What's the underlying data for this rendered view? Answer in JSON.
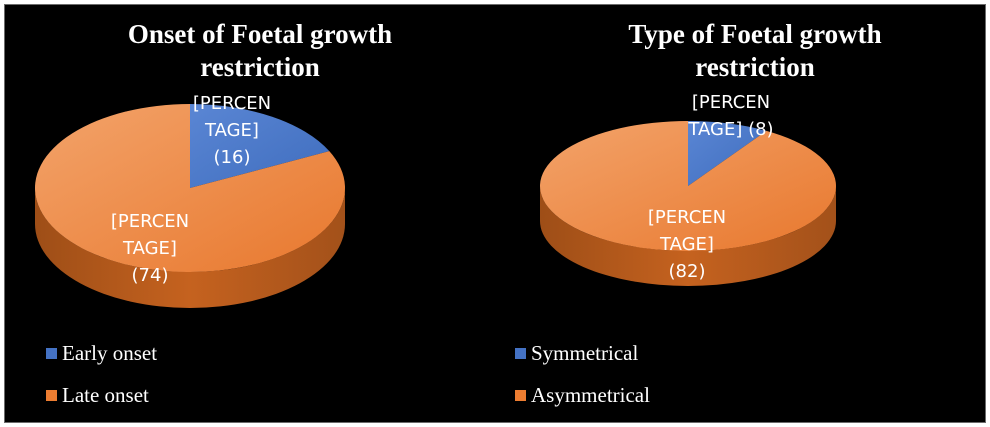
{
  "colors": {
    "background": "#000000",
    "blue": "#4472C4",
    "orange": "#ED7D31"
  },
  "chart_data": [
    {
      "type": "pie",
      "title": "Onset of Foetal growth restriction",
      "categories": [
        "Early onset",
        "Late onset"
      ],
      "values": [
        16,
        74
      ],
      "data_labels": [
        [
          "[PERCEN",
          "TAGE]",
          "(16)"
        ],
        [
          "[PERCEN",
          "TAGE]",
          "(74)"
        ]
      ],
      "legend_position": "bottom-left",
      "style": "3d"
    },
    {
      "type": "pie",
      "title": "Type of Foetal growth restriction",
      "categories": [
        "Symmetrical",
        "Asymmetrical"
      ],
      "values": [
        8,
        82
      ],
      "data_labels": [
        [
          "[PERCEN",
          "TAGE] (8)"
        ],
        [
          "[PERCEN",
          "TAGE]",
          "(82)"
        ]
      ],
      "legend_position": "bottom-left",
      "style": "3d"
    }
  ]
}
